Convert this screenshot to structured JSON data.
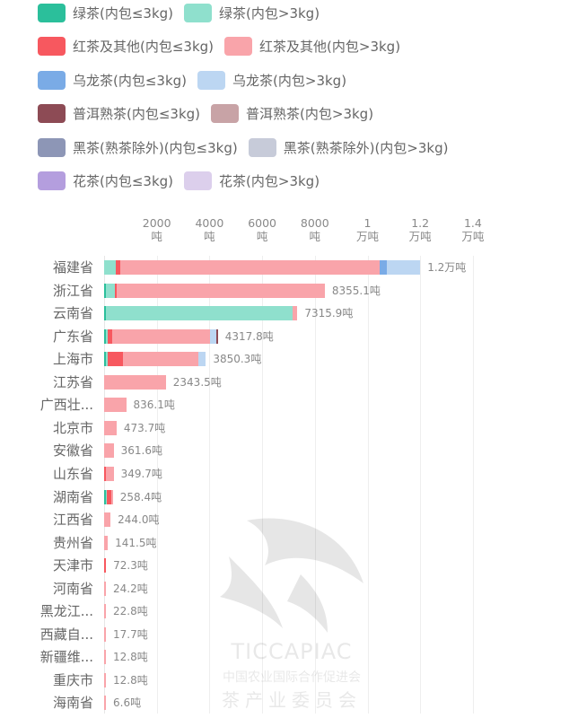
{
  "legend": [
    [
      {
        "label": "绿茶(内包≤3kg)",
        "color": "#2bbf9b"
      },
      {
        "label": "绿茶(内包>3kg)",
        "color": "#8fe0cd"
      }
    ],
    [
      {
        "label": "红茶及其他(内包≤3kg)",
        "color": "#f7585f"
      },
      {
        "label": "红茶及其他(内包>3kg)",
        "color": "#f9a4aa"
      }
    ],
    [
      {
        "label": "乌龙茶(内包≤3kg)",
        "color": "#7aabe6"
      },
      {
        "label": "乌龙茶(内包>3kg)",
        "color": "#bcd6f2"
      }
    ],
    [
      {
        "label": "普洱熟茶(内包≤3kg)",
        "color": "#8d4b55"
      },
      {
        "label": "普洱熟茶(内包>3kg)",
        "color": "#c8a3a6"
      }
    ],
    [
      {
        "label": "黑茶(熟茶除外)(内包≤3kg)",
        "color": "#8d96b6"
      },
      {
        "label": "黑茶(熟茶除外)(内包>3kg)",
        "color": "#c7cbd9"
      }
    ],
    [
      {
        "label": "花茶(内包≤3kg)",
        "color": "#b49ede"
      },
      {
        "label": "花茶(内包>3kg)",
        "color": "#dccfec"
      }
    ]
  ],
  "axis": {
    "ticks": [
      {
        "value": 2000,
        "line1": "2000",
        "line2": "吨"
      },
      {
        "value": 4000,
        "line1": "4000",
        "line2": "吨"
      },
      {
        "value": 6000,
        "line1": "6000",
        "line2": "吨"
      },
      {
        "value": 8000,
        "line1": "8000",
        "line2": "吨"
      },
      {
        "value": 10000,
        "line1": "1",
        "line2": "万吨"
      },
      {
        "value": 12000,
        "line1": "1.2",
        "line2": "万吨"
      },
      {
        "value": 14000,
        "line1": "1.4",
        "line2": "万吨"
      }
    ]
  },
  "watermark": {
    "line1": "TICCAPIAC",
    "line2": "中国农业国际合作促进会",
    "line3": "茶产业委员会"
  },
  "chart_data": {
    "type": "bar",
    "orientation": "horizontal",
    "stacked": true,
    "title": "",
    "xlabel": "",
    "ylabel": "",
    "unit": "吨",
    "xlim": [
      0,
      14500
    ],
    "grid": true,
    "legend_position": "top",
    "categories": [
      "福建省",
      "浙江省",
      "云南省",
      "广东省",
      "上海市",
      "江苏省",
      "广西壮...",
      "北京市",
      "安徽省",
      "山东省",
      "湖南省",
      "江西省",
      "贵州省",
      "天津市",
      "河南省",
      "黑龙江...",
      "西藏自...",
      "新疆维...",
      "重庆市",
      "海南省"
    ],
    "totals": [
      12000,
      8355.1,
      7315.9,
      4317.8,
      3850.3,
      2343.5,
      836.1,
      473.7,
      361.6,
      349.7,
      258.4,
      244.0,
      141.5,
      72.3,
      24.2,
      22.8,
      17.7,
      12.8,
      12.8,
      6.6
    ],
    "total_labels": [
      "1.2万吨",
      "8355.1吨",
      "7315.9吨",
      "4317.8吨",
      "3850.3吨",
      "2343.5吨",
      "836.1吨",
      "473.7吨",
      "361.6吨",
      "349.7吨",
      "258.4吨",
      "244.0吨",
      "141.5吨",
      "72.3吨",
      "24.2吨",
      "22.8吨",
      "17.7吨",
      "12.8吨",
      "12.8吨",
      "6.6吨"
    ],
    "series": [
      {
        "name": "绿茶(内包≤3kg)",
        "color": "#2bbf9b",
        "values": [
          0,
          40,
          30,
          60,
          80,
          0,
          0,
          0,
          0,
          0,
          30,
          0,
          0,
          0,
          0,
          0,
          0,
          0,
          0,
          0
        ]
      },
      {
        "name": "绿茶(内包>3kg)",
        "color": "#8fe0cd",
        "values": [
          450,
          370,
          7100,
          60,
          40,
          0,
          0,
          0,
          0,
          0,
          20,
          0,
          0,
          0,
          0,
          0,
          0,
          0,
          0,
          0
        ]
      },
      {
        "name": "红茶及其他(内包≤3kg)",
        "color": "#f7585f",
        "values": [
          170,
          40,
          0,
          200,
          600,
          0,
          0,
          0,
          0,
          40,
          180,
          0,
          0,
          72.3,
          0,
          0,
          0,
          0,
          0,
          0
        ]
      },
      {
        "name": "红茶及其他(内包>3kg)",
        "color": "#f9a4aa",
        "values": [
          9840,
          7905.1,
          185.9,
          3700,
          2830,
          2343.5,
          836.1,
          473.7,
          361.6,
          309.7,
          28.4,
          244.0,
          141.5,
          0,
          24.2,
          22.8,
          17.7,
          12.8,
          12.8,
          6.6
        ]
      },
      {
        "name": "乌龙茶(内包≤3kg)",
        "color": "#7aabe6",
        "values": [
          270,
          0,
          0,
          0,
          0,
          0,
          0,
          0,
          0,
          0,
          0,
          0,
          0,
          0,
          0,
          0,
          0,
          0,
          0,
          0
        ]
      },
      {
        "name": "乌龙茶(内包>3kg)",
        "color": "#bcd6f2",
        "values": [
          1270,
          0,
          0,
          230,
          300.3,
          0,
          0,
          0,
          0,
          0,
          0,
          0,
          0,
          0,
          0,
          0,
          0,
          0,
          0,
          0
        ]
      },
      {
        "name": "普洱熟茶(内包≤3kg)",
        "color": "#8d4b55",
        "values": [
          0,
          0,
          0,
          67.8,
          0,
          0,
          0,
          0,
          0,
          0,
          0,
          0,
          0,
          0,
          0,
          0,
          0,
          0,
          0,
          0
        ]
      },
      {
        "name": "普洱熟茶(内包>3kg)",
        "color": "#c8a3a6",
        "values": [
          0,
          0,
          0,
          0,
          0,
          0,
          0,
          0,
          0,
          0,
          0,
          0,
          0,
          0,
          0,
          0,
          0,
          0,
          0,
          0
        ]
      },
      {
        "name": "黑茶(熟茶除外)(内包≤3kg)",
        "color": "#8d96b6",
        "values": [
          0,
          0,
          0,
          0,
          0,
          0,
          0,
          0,
          0,
          0,
          0,
          0,
          0,
          0,
          0,
          0,
          0,
          0,
          0,
          0
        ]
      },
      {
        "name": "黑茶(熟茶除外)(内包>3kg)",
        "color": "#c7cbd9",
        "values": [
          0,
          0,
          0,
          0,
          0,
          0,
          0,
          0,
          0,
          0,
          0,
          0,
          0,
          0,
          0,
          0,
          0,
          0,
          0,
          0
        ]
      },
      {
        "name": "花茶(内包≤3kg)",
        "color": "#b49ede",
        "values": [
          0,
          0,
          0,
          0,
          0,
          0,
          0,
          0,
          0,
          0,
          0,
          0,
          0,
          0,
          0,
          0,
          0,
          0,
          0,
          0
        ]
      },
      {
        "name": "花茶(内包>3kg)",
        "color": "#dccfec",
        "values": [
          0,
          0,
          0,
          0,
          0,
          0,
          0,
          0,
          0,
          0,
          0,
          0,
          0,
          0,
          0,
          0,
          0,
          0,
          0,
          0
        ]
      }
    ]
  }
}
